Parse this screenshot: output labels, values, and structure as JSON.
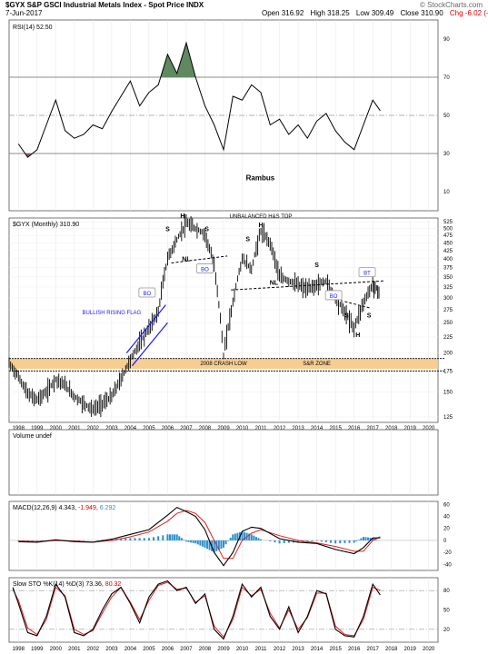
{
  "header": {
    "title": "$GYX S&P GSCI Industrial Metals Index - Spot Price INDX",
    "date": "7-Jun-2017",
    "open": "Open 316.92",
    "high": "High 318.25",
    "low": "Low 309.49",
    "close": "Close 310.90",
    "change": "Chg -6.02 (-1.90%)",
    "logo": "© StockCharts.com"
  },
  "colors": {
    "up": "#000000",
    "price_axis": "#000000",
    "sr_zone": "#f6c985",
    "pattern_blue": "#1a1aff",
    "macd_hist": "#2a8fcf",
    "macd_signal": "#e02020",
    "rsi_overbought": "#5f8a5f",
    "rsi_oversold": "#9a5a5a"
  },
  "chart_data": [
    {
      "type": "line",
      "title": "RSI(14) 52.50",
      "watermark": "Rambus",
      "ylim": [
        0,
        100
      ],
      "yticks": [
        "90",
        "70",
        "50",
        "30",
        "10"
      ],
      "levels": [
        70,
        50,
        30
      ],
      "x": [
        1998,
        1998.5,
        1999,
        1999.5,
        2000,
        2000.5,
        2001,
        2001.5,
        2002,
        2002.5,
        2003,
        2003.5,
        2004,
        2004.5,
        2005,
        2005.5,
        2006,
        2006.5,
        2007,
        2007.5,
        2008,
        2008.5,
        2009,
        2009.5,
        2010,
        2010.5,
        2011,
        2011.5,
        2012,
        2012.5,
        2013,
        2013.5,
        2014,
        2014.5,
        2015,
        2015.5,
        2016,
        2016.5,
        2017,
        2017.4
      ],
      "values": [
        35,
        28,
        32,
        45,
        58,
        42,
        38,
        40,
        45,
        43,
        52,
        60,
        68,
        55,
        62,
        66,
        82,
        72,
        88,
        70,
        55,
        45,
        32,
        60,
        58,
        66,
        62,
        45,
        48,
        40,
        45,
        38,
        47,
        51,
        42,
        36,
        32,
        45,
        58,
        52.5
      ]
    },
    {
      "type": "line",
      "title": "$GYX (Monthly) 310.90",
      "ylim": [
        120,
        540
      ],
      "y_scale": "log",
      "yticks": [
        "525",
        "500",
        "475",
        "450",
        "425",
        "400",
        "375",
        "350",
        "325",
        "300",
        "275",
        "250",
        "225",
        "200",
        "175",
        "150",
        "125"
      ],
      "xticks": [
        "1998",
        "1999",
        "2000",
        "2001",
        "2002",
        "2003",
        "2004",
        "2005",
        "2006",
        "2007",
        "2008",
        "2009",
        "2010",
        "2011",
        "2012",
        "2013",
        "2014",
        "2015",
        "2016",
        "2017",
        "2018",
        "2019",
        "2020"
      ],
      "x": [
        1997.5,
        1998,
        1998.5,
        1999,
        1999.5,
        2000,
        2000.5,
        2001,
        2001.5,
        2002,
        2002.5,
        2003,
        2003.5,
        2004,
        2004.5,
        2005,
        2005.5,
        2006,
        2006.5,
        2007,
        2007.5,
        2008,
        2008.5,
        2009,
        2009.5,
        2010,
        2010.5,
        2011,
        2011.5,
        2012,
        2012.5,
        2013,
        2013.5,
        2014,
        2014.5,
        2015,
        2015.5,
        2016,
        2016.5,
        2017,
        2017.4
      ],
      "values": [
        185,
        168,
        148,
        142,
        150,
        165,
        158,
        145,
        138,
        132,
        138,
        145,
        165,
        190,
        215,
        240,
        270,
        400,
        460,
        520,
        500,
        480,
        380,
        195,
        290,
        400,
        370,
        490,
        450,
        350,
        340,
        330,
        320,
        330,
        340,
        300,
        270,
        240,
        290,
        330,
        310.9
      ],
      "annotations": {
        "pattern_title": "UNBALANCED H&S TOP",
        "bullish_flag": "BULLISH RISING FLAG",
        "crash_low": "2008 CRASH LOW",
        "sr_zone": "S&R ZONE",
        "breakout": "BO",
        "backtest": "BT",
        "neckline": "NL",
        "shoulder": "S",
        "head": "H"
      }
    },
    {
      "type": "bar",
      "title": "Volume undef"
    },
    {
      "type": "line",
      "title": "MACD(12,26,9)",
      "title_values": [
        "4.343,",
        "-1.949,",
        "6.292"
      ],
      "yticks": [
        "60",
        "40",
        "20",
        "0",
        "-20",
        "-40"
      ],
      "ylim": [
        -50,
        65
      ],
      "x": [
        1998,
        1999,
        2000,
        2001,
        2002,
        2003,
        2004,
        2005,
        2006,
        2006.5,
        2007,
        2007.5,
        2008,
        2008.5,
        2009,
        2009.5,
        2010,
        2010.5,
        2011,
        2012,
        2013,
        2014,
        2015,
        2016,
        2016.5,
        2017,
        2017.4
      ],
      "macd": [
        -2,
        -3,
        1,
        -2,
        -3,
        2,
        10,
        18,
        42,
        55,
        48,
        40,
        18,
        -20,
        -42,
        -20,
        15,
        22,
        20,
        3,
        -3,
        -5,
        -15,
        -22,
        -12,
        4,
        4.343
      ],
      "signal": [
        -1,
        -2,
        0,
        -1,
        -3,
        0,
        6,
        14,
        32,
        45,
        50,
        45,
        30,
        0,
        -30,
        -30,
        0,
        12,
        18,
        8,
        0,
        -4,
        -10,
        -18,
        -18,
        0,
        6.292
      ],
      "histogram": [
        -1,
        -1,
        1,
        -1,
        0,
        2,
        4,
        4,
        10,
        10,
        -2,
        -5,
        -12,
        -20,
        -12,
        10,
        15,
        10,
        2,
        -5,
        -3,
        -1,
        -5,
        -4,
        6,
        4,
        -1.949
      ]
    },
    {
      "type": "line",
      "title": "Slow STO %K(14) %D(3)",
      "title_values": [
        "73.36,",
        "80.32"
      ],
      "yticks": [
        "80",
        "50",
        "20"
      ],
      "levels": [
        80,
        20
      ],
      "ylim": [
        0,
        100
      ],
      "x": [
        1997.7,
        1998,
        1998.5,
        1999,
        1999.5,
        2000,
        2000.5,
        2001,
        2001.5,
        2002,
        2002.5,
        2003,
        2003.5,
        2004,
        2004.5,
        2005,
        2005.5,
        2006,
        2006.5,
        2007,
        2007.5,
        2008,
        2008.5,
        2009,
        2009.5,
        2010,
        2010.5,
        2011,
        2011.5,
        2012,
        2012.5,
        2013,
        2013.5,
        2014,
        2014.5,
        2015,
        2015.5,
        2016,
        2016.5,
        2017,
        2017.4
      ],
      "k": [
        85,
        60,
        15,
        10,
        40,
        90,
        70,
        15,
        10,
        20,
        50,
        75,
        85,
        60,
        30,
        70,
        90,
        95,
        80,
        85,
        60,
        75,
        20,
        5,
        40,
        90,
        70,
        85,
        40,
        20,
        55,
        15,
        40,
        80,
        75,
        20,
        10,
        8,
        40,
        90,
        73.36
      ],
      "d": [
        82,
        65,
        22,
        12,
        35,
        85,
        72,
        20,
        12,
        18,
        45,
        70,
        85,
        62,
        35,
        65,
        88,
        93,
        82,
        84,
        62,
        72,
        25,
        8,
        35,
        85,
        72,
        82,
        45,
        22,
        50,
        20,
        38,
        76,
        76,
        25,
        12,
        10,
        35,
        85,
        80.32
      ]
    }
  ]
}
